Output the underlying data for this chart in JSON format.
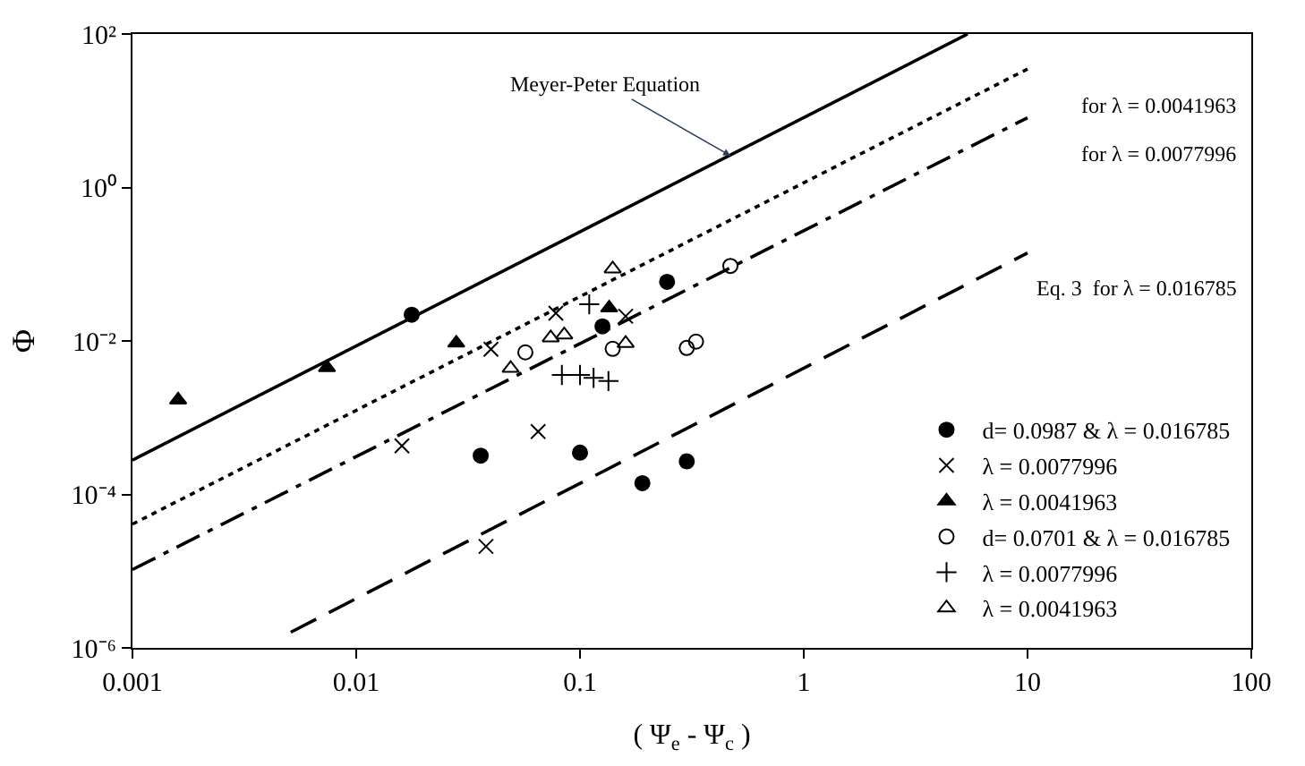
{
  "chart_data": {
    "type": "scatter",
    "xlabel": "( Ψ$_{e}$ - Ψ$_{c}$ )",
    "ylabel": "Φ",
    "log": "xy",
    "legend": "bottom right",
    "xlim": [
      0.001,
      100
    ],
    "xticks": [
      0.001,
      0.01,
      0.1,
      1,
      10,
      100
    ],
    "ylim": [
      1e-06,
      100
    ],
    "yticks": [
      {
        "value": 1e-06,
        "label": "10⁻⁶"
      },
      {
        "value": 0.0001,
        "label": "10⁻⁴"
      },
      {
        "value": 0.01,
        "label": "10⁻²"
      },
      {
        "value": 1,
        "label": "10⁰"
      },
      {
        "value": 100,
        "label": "10²"
      }
    ],
    "annotations": [
      {
        "text": "Meyer-Peter Equation",
        "x": 0.47,
        "y": 2.6
      }
    ],
    "series": [
      {
        "type": "line",
        "line_style": "solid",
        "color": "#000000",
        "x": [
          0.001,
          5.4
        ],
        "values": [
          0.00028,
          100
        ]
      },
      {
        "type": "line",
        "line_style": "dotted",
        "name": "for λ = 0.0041963",
        "color": "#000000",
        "x": [
          0.001,
          10
        ],
        "values": [
          4.1e-05,
          35
        ]
      },
      {
        "type": "line",
        "line_style": "dashdot",
        "name": "for λ = 0.0077996",
        "color": "#000000",
        "x": [
          0.001,
          10
        ],
        "values": [
          1.05e-05,
          8.1
        ]
      },
      {
        "type": "line",
        "line_style": "dashed",
        "name": "Eq. 3  for λ = 0.016785",
        "color": "#000000",
        "x": [
          0.0051,
          10
        ],
        "values": [
          1.6e-06,
          0.14
        ]
      },
      {
        "marker": "circle",
        "name": "d= 0.0987 & λ = 0.016785",
        "color": "#000000",
        "x": [
          0.0177,
          0.126,
          0.245,
          0.036,
          0.1,
          0.19,
          0.3
        ],
        "values": [
          0.022,
          0.0155,
          0.059,
          0.00032,
          0.00035,
          0.00014,
          0.00027
        ]
      },
      {
        "marker": "x",
        "name": "λ = 0.0077996",
        "color": "#000000",
        "x": [
          0.04,
          0.078,
          0.16,
          0.016,
          0.065,
          0.038
        ],
        "values": [
          0.0078,
          0.023,
          0.021,
          0.00043,
          0.00066,
          2.1e-05
        ]
      },
      {
        "marker": "triangle",
        "name": "λ = 0.0041963",
        "color": "#000000",
        "x": [
          0.0016,
          0.0074,
          0.028,
          0.135
        ],
        "values": [
          0.0017,
          0.0045,
          0.0094,
          0.027
        ]
      },
      {
        "marker": "circle-open",
        "name": "d= 0.0701 & λ = 0.016785",
        "color": "#000000",
        "x": [
          0.057,
          0.14,
          0.3,
          0.33,
          0.47
        ],
        "values": [
          0.0071,
          0.0079,
          0.0081,
          0.0098,
          0.095
        ]
      },
      {
        "marker": "cross",
        "name": "λ = 0.0077996",
        "color": "#000000",
        "x": [
          0.11,
          0.083,
          0.1,
          0.115,
          0.134
        ],
        "values": [
          0.03,
          0.0036,
          0.0036,
          0.0033,
          0.003
        ]
      },
      {
        "marker": "triangle-open",
        "name": "λ = 0.0041963",
        "color": "#000000",
        "x": [
          0.14,
          0.074,
          0.085,
          0.049,
          0.16
        ],
        "values": [
          0.087,
          0.011,
          0.012,
          0.0044,
          0.0093
        ]
      }
    ]
  }
}
